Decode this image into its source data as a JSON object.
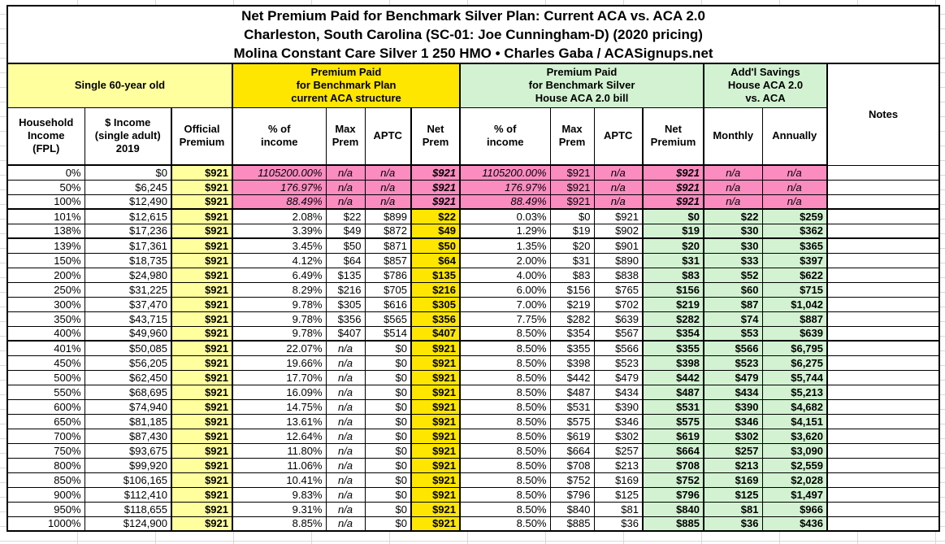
{
  "title": {
    "line1": "Net Premium Paid for Benchmark Silver Plan: Current ACA vs. ACA 2.0",
    "line2": "Charleston, South Carolina (SC-01: Joe Cunningham-D) (2020 pricing)",
    "line3": "Molina Constant Care Silver 1 250 HMO • Charles Gaba / ACASignups.net"
  },
  "groups": {
    "demographic": "Single 60-year old",
    "aca": "Premium Paid\nfor Benchmark Plan\ncurrent ACA structure",
    "aca2": "Premium Paid\nfor Benchmark Silver\nHouse ACA 2.0 bill",
    "savings": "Add'l Savings\nHouse ACA 2.0\nvs. ACA",
    "notes": "Notes"
  },
  "columns": [
    "Household\nIncome\n(FPL)",
    "$ Income\n(single adult)\n2019",
    "Official\nPremium",
    "% of\nincome",
    "Max\nPrem",
    "APTC",
    "Net\nPrem",
    "% of\nincome",
    "Max\nPrem",
    "APTC",
    "Net\nPremium",
    "Monthly",
    "Annually"
  ],
  "colors": {
    "pale_yellow": "#ffff9e",
    "bright_yellow": "#ffe600",
    "light_green": "#d2f2d2",
    "pink": "#fa8cc0",
    "border": "#000000"
  },
  "table": {
    "rows": [
      {
        "pink": true,
        "sep": false,
        "cells": [
          "0%",
          "$0",
          "$921",
          "1105200.00%",
          "n/a",
          "n/a",
          "$921",
          "1105200.00%",
          "$921",
          "n/a",
          "$921",
          "n/a",
          "n/a"
        ]
      },
      {
        "pink": true,
        "sep": false,
        "cells": [
          "50%",
          "$6,245",
          "$921",
          "176.97%",
          "n/a",
          "n/a",
          "$921",
          "176.97%",
          "$921",
          "n/a",
          "$921",
          "n/a",
          "n/a"
        ]
      },
      {
        "pink": true,
        "sep": false,
        "cells": [
          "100%",
          "$12,490",
          "$921",
          "88.49%",
          "n/a",
          "n/a",
          "$921",
          "88.49%",
          "$921",
          "n/a",
          "$921",
          "n/a",
          "n/a"
        ]
      },
      {
        "pink": false,
        "sep": true,
        "cells": [
          "101%",
          "$12,615",
          "$921",
          "2.08%",
          "$22",
          "$899",
          "$22",
          "0.03%",
          "$0",
          "$921",
          "$0",
          "$22",
          "$259"
        ]
      },
      {
        "pink": false,
        "sep": false,
        "cells": [
          "138%",
          "$17,236",
          "$921",
          "3.39%",
          "$49",
          "$872",
          "$49",
          "1.29%",
          "$19",
          "$902",
          "$19",
          "$30",
          "$362"
        ]
      },
      {
        "pink": false,
        "sep": true,
        "cells": [
          "139%",
          "$17,361",
          "$921",
          "3.45%",
          "$50",
          "$871",
          "$50",
          "1.35%",
          "$20",
          "$901",
          "$20",
          "$30",
          "$365"
        ]
      },
      {
        "pink": false,
        "sep": false,
        "cells": [
          "150%",
          "$18,735",
          "$921",
          "4.12%",
          "$64",
          "$857",
          "$64",
          "2.00%",
          "$31",
          "$890",
          "$31",
          "$33",
          "$397"
        ]
      },
      {
        "pink": false,
        "sep": false,
        "cells": [
          "200%",
          "$24,980",
          "$921",
          "6.49%",
          "$135",
          "$786",
          "$135",
          "4.00%",
          "$83",
          "$838",
          "$83",
          "$52",
          "$622"
        ]
      },
      {
        "pink": false,
        "sep": false,
        "cells": [
          "250%",
          "$31,225",
          "$921",
          "8.29%",
          "$216",
          "$705",
          "$216",
          "6.00%",
          "$156",
          "$765",
          "$156",
          "$60",
          "$715"
        ]
      },
      {
        "pink": false,
        "sep": false,
        "cells": [
          "300%",
          "$37,470",
          "$921",
          "9.78%",
          "$305",
          "$616",
          "$305",
          "7.00%",
          "$219",
          "$702",
          "$219",
          "$87",
          "$1,042"
        ]
      },
      {
        "pink": false,
        "sep": false,
        "cells": [
          "350%",
          "$43,715",
          "$921",
          "9.78%",
          "$356",
          "$565",
          "$356",
          "7.75%",
          "$282",
          "$639",
          "$282",
          "$74",
          "$887"
        ]
      },
      {
        "pink": false,
        "sep": false,
        "cells": [
          "400%",
          "$49,960",
          "$921",
          "9.78%",
          "$407",
          "$514",
          "$407",
          "8.50%",
          "$354",
          "$567",
          "$354",
          "$53",
          "$639"
        ]
      },
      {
        "pink": false,
        "sep": true,
        "cells": [
          "401%",
          "$50,085",
          "$921",
          "22.07%",
          "n/a",
          "$0",
          "$921",
          "8.50%",
          "$355",
          "$566",
          "$355",
          "$566",
          "$6,795"
        ]
      },
      {
        "pink": false,
        "sep": false,
        "cells": [
          "450%",
          "$56,205",
          "$921",
          "19.66%",
          "n/a",
          "$0",
          "$921",
          "8.50%",
          "$398",
          "$523",
          "$398",
          "$523",
          "$6,275"
        ]
      },
      {
        "pink": false,
        "sep": false,
        "cells": [
          "500%",
          "$62,450",
          "$921",
          "17.70%",
          "n/a",
          "$0",
          "$921",
          "8.50%",
          "$442",
          "$479",
          "$442",
          "$479",
          "$5,744"
        ]
      },
      {
        "pink": false,
        "sep": false,
        "cells": [
          "550%",
          "$68,695",
          "$921",
          "16.09%",
          "n/a",
          "$0",
          "$921",
          "8.50%",
          "$487",
          "$434",
          "$487",
          "$434",
          "$5,213"
        ]
      },
      {
        "pink": false,
        "sep": false,
        "cells": [
          "600%",
          "$74,940",
          "$921",
          "14.75%",
          "n/a",
          "$0",
          "$921",
          "8.50%",
          "$531",
          "$390",
          "$531",
          "$390",
          "$4,682"
        ]
      },
      {
        "pink": false,
        "sep": false,
        "cells": [
          "650%",
          "$81,185",
          "$921",
          "13.61%",
          "n/a",
          "$0",
          "$921",
          "8.50%",
          "$575",
          "$346",
          "$575",
          "$346",
          "$4,151"
        ]
      },
      {
        "pink": false,
        "sep": false,
        "cells": [
          "700%",
          "$87,430",
          "$921",
          "12.64%",
          "n/a",
          "$0",
          "$921",
          "8.50%",
          "$619",
          "$302",
          "$619",
          "$302",
          "$3,620"
        ]
      },
      {
        "pink": false,
        "sep": false,
        "cells": [
          "750%",
          "$93,675",
          "$921",
          "11.80%",
          "n/a",
          "$0",
          "$921",
          "8.50%",
          "$664",
          "$257",
          "$664",
          "$257",
          "$3,090"
        ]
      },
      {
        "pink": false,
        "sep": false,
        "cells": [
          "800%",
          "$99,920",
          "$921",
          "11.06%",
          "n/a",
          "$0",
          "$921",
          "8.50%",
          "$708",
          "$213",
          "$708",
          "$213",
          "$2,559"
        ]
      },
      {
        "pink": false,
        "sep": false,
        "cells": [
          "850%",
          "$106,165",
          "$921",
          "10.41%",
          "n/a",
          "$0",
          "$921",
          "8.50%",
          "$752",
          "$169",
          "$752",
          "$169",
          "$2,028"
        ]
      },
      {
        "pink": false,
        "sep": false,
        "cells": [
          "900%",
          "$112,410",
          "$921",
          "9.83%",
          "n/a",
          "$0",
          "$921",
          "8.50%",
          "$796",
          "$125",
          "$796",
          "$125",
          "$1,497"
        ]
      },
      {
        "pink": false,
        "sep": false,
        "cells": [
          "950%",
          "$118,655",
          "$921",
          "9.31%",
          "n/a",
          "$0",
          "$921",
          "8.50%",
          "$840",
          "$81",
          "$840",
          "$81",
          "$966"
        ]
      },
      {
        "pink": false,
        "sep": false,
        "cells": [
          "1000%",
          "$124,900",
          "$921",
          "8.85%",
          "n/a",
          "$0",
          "$921",
          "8.50%",
          "$885",
          "$36",
          "$885",
          "$36",
          "$436"
        ]
      }
    ]
  }
}
